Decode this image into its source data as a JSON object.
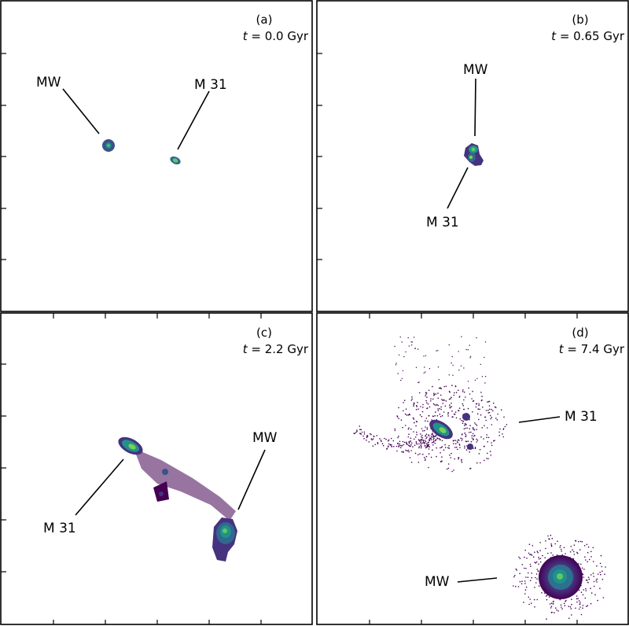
{
  "panels": [
    {
      "id": "a",
      "label": "(a)",
      "time_var": "t",
      "time_text": " = 0.0 Gyr",
      "galaxies": [
        {
          "name": "MW"
        },
        {
          "name": "M 31"
        }
      ]
    },
    {
      "id": "b",
      "label": "(b)",
      "time_var": "t",
      "time_text": " = 0.65 Gyr",
      "galaxies": [
        {
          "name": "MW"
        },
        {
          "name": "M 31"
        }
      ]
    },
    {
      "id": "c",
      "label": "(c)",
      "time_var": "t",
      "time_text": " = 2.2 Gyr",
      "galaxies": [
        {
          "name": "M 31"
        },
        {
          "name": "MW"
        }
      ]
    },
    {
      "id": "d",
      "label": "(d)",
      "time_var": "t",
      "time_text": " = 7.4 Gyr",
      "galaxies": [
        {
          "name": "M 31"
        },
        {
          "name": "MW"
        }
      ]
    }
  ],
  "colors": {
    "density_low": "#440154",
    "density_mid_low": "#3b528b",
    "density_mid": "#21918c",
    "density_mid_high": "#5ec962",
    "density_high": "#fde725"
  }
}
